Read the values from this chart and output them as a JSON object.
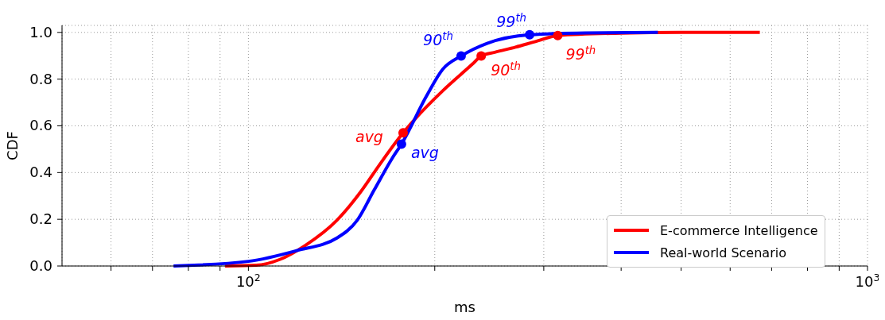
{
  "chart_data": {
    "type": "line",
    "xlabel": "ms",
    "ylabel": "CDF",
    "log": "x",
    "grid": true,
    "legend": "bottom right",
    "line_style": "solid",
    "xlim": [
      50,
      1000
    ],
    "ylim": [
      0,
      1.03
    ],
    "xticks": [
      {
        "value": 60,
        "label": null
      },
      {
        "value": 70,
        "label": null
      },
      {
        "value": 80,
        "label": null
      },
      {
        "value": 90,
        "label": null
      },
      {
        "value": 100,
        "label": "10$^{2}$"
      },
      {
        "value": 200,
        "label": null
      },
      {
        "value": 300,
        "label": null
      },
      {
        "value": 400,
        "label": null
      },
      {
        "value": 500,
        "label": null
      },
      {
        "value": 600,
        "label": null
      },
      {
        "value": 700,
        "label": null
      },
      {
        "value": 800,
        "label": null
      },
      {
        "value": 900,
        "label": null
      },
      {
        "value": 1000,
        "label": "10$^{3}$"
      }
    ],
    "yticks": [
      {
        "value": 0,
        "label": "0.0"
      },
      {
        "value": 0.2,
        "label": "0.2"
      },
      {
        "value": 0.4,
        "label": "0.4"
      },
      {
        "value": 0.6,
        "label": "0.6"
      },
      {
        "value": 0.8,
        "label": "0.8"
      },
      {
        "value": 1,
        "label": "1.0"
      }
    ],
    "series": [
      {
        "name": "E-commerce Intelligence",
        "marker": "none",
        "color": "#ff0000",
        "x": [
          91.7,
          103,
          112.4,
          123.7,
          139,
          151.7,
          163.5,
          177.8,
          185.5,
          206,
          230,
          237.7,
          250,
          270,
          290,
          316,
          400,
          500,
          670
        ],
        "values": [
          0,
          0.003,
          0.028,
          0.089,
          0.196,
          0.316,
          0.44,
          0.57,
          0.627,
          0.75,
          0.864,
          0.899,
          0.915,
          0.937,
          0.96,
          0.987,
          0.997,
          1,
          1
        ]
      },
      {
        "name": "Real-world Scenario",
        "marker": "none",
        "color": "#0000ff",
        "x": [
          75.7,
          100,
          119.7,
          139,
          149.9,
          159.7,
          170.6,
          176.7,
          194,
          206,
          220.6,
          243,
          284.6,
          350,
          458.6
        ],
        "values": [
          0,
          0.02,
          0.066,
          0.12,
          0.196,
          0.326,
          0.46,
          0.522,
          0.728,
          0.842,
          0.899,
          0.953,
          0.99,
          0.998,
          1
        ]
      },
      {
        "type": "scatter",
        "marker": "circle",
        "color": "#ff0000",
        "x": [
          177.8,
          237.7,
          316
        ],
        "values": [
          0.57,
          0.899,
          0.987
        ]
      },
      {
        "type": "scatter",
        "marker": "circle",
        "color": "#0000ff",
        "x": [
          176.7,
          220.6,
          284.6
        ],
        "values": [
          0.522,
          0.899,
          0.99
        ]
      }
    ],
    "annotations": [
      {
        "text": "avg",
        "x": 177.8,
        "y": 0.57
      },
      {
        "text": "90$^{th}$",
        "x": 237.7,
        "y": 0.899
      },
      {
        "text": "99$^{th}$",
        "x": 316,
        "y": 0.987
      },
      {
        "text": "avg",
        "x": 176.7,
        "y": 0.522
      },
      {
        "text": "90$^{th}$",
        "x": 220.6,
        "y": 0.899
      },
      {
        "text": "99$^{th}$",
        "x": 284.6,
        "y": 0.99
      }
    ]
  }
}
